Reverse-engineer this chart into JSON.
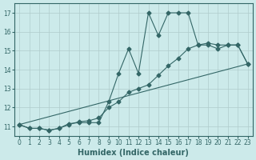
{
  "title": "",
  "xlabel": "Humidex (Indice chaleur)",
  "bg_color": "#cceaea",
  "grid_color": "#b0cccc",
  "line_color": "#336666",
  "xlim": [
    -0.5,
    23.5
  ],
  "ylim": [
    10.5,
    17.5
  ],
  "yticks": [
    11,
    12,
    13,
    14,
    15,
    16,
    17
  ],
  "xticks": [
    0,
    1,
    2,
    3,
    4,
    5,
    6,
    7,
    8,
    9,
    10,
    11,
    12,
    13,
    14,
    15,
    16,
    17,
    18,
    19,
    20,
    21,
    22,
    23
  ],
  "series1_x": [
    0,
    1,
    2,
    3,
    4,
    5,
    6,
    7,
    8,
    9,
    10,
    11,
    12,
    13,
    14,
    15,
    16,
    17,
    18,
    19,
    20,
    21,
    22,
    23
  ],
  "series1_y": [
    11.1,
    10.9,
    10.9,
    10.8,
    10.9,
    11.15,
    11.2,
    11.2,
    11.2,
    12.3,
    13.8,
    15.1,
    13.8,
    17.0,
    15.8,
    17.0,
    17.0,
    17.0,
    15.3,
    15.3,
    15.1,
    15.3,
    15.3,
    14.3
  ],
  "series2_x": [
    0,
    1,
    2,
    3,
    4,
    5,
    6,
    7,
    8,
    9,
    10,
    11,
    12,
    13,
    14,
    15,
    16,
    17,
    18,
    19,
    20,
    21,
    22,
    23
  ],
  "series2_y": [
    11.1,
    10.9,
    10.9,
    10.8,
    10.9,
    11.1,
    11.25,
    11.3,
    11.45,
    12.0,
    12.3,
    12.8,
    13.0,
    13.2,
    13.7,
    14.2,
    14.6,
    15.1,
    15.3,
    15.4,
    15.3,
    15.3,
    15.3,
    14.3
  ],
  "series3_x": [
    0,
    23
  ],
  "series3_y": [
    11.1,
    14.3
  ],
  "marker_size": 2.5,
  "linewidth": 0.8,
  "xlabel_fontsize": 7,
  "tick_fontsize": 5.5
}
